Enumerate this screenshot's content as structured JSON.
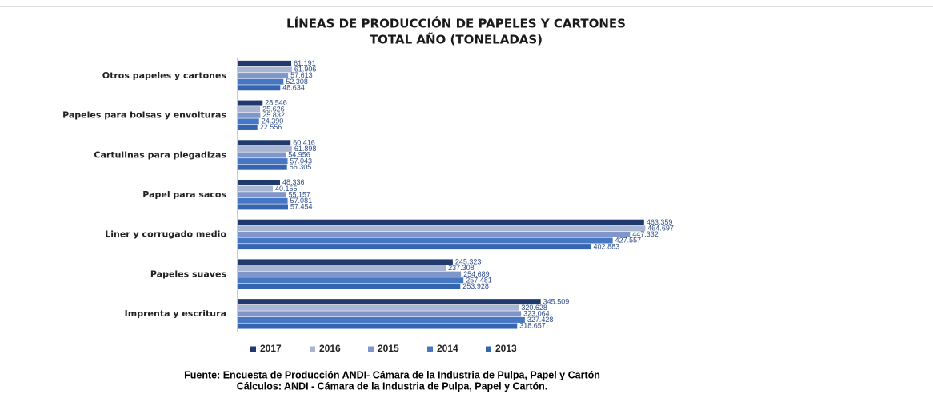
{
  "chart_data": {
    "type": "hbar",
    "title": "LÍNEAS DE PRODUCCIÓN DE PAPELES Y CARTONES",
    "subtitle": "TOTAL AÑO (TONELADAS)",
    "categories": [
      "Otros papeles y cartones",
      "Papeles para bolsas y envolturas",
      "Cartulinas para plegadizas",
      "Papel para sacos",
      "Liner y corrugado medio",
      "Papeles suaves",
      "Imprenta y escritura"
    ],
    "series": [
      {
        "name": "2017",
        "color": "#203a6e",
        "values": [
          61191,
          28546,
          60416,
          48336,
          463359,
          245323,
          345509
        ],
        "value_labels": [
          "61.191",
          "28.546",
          "60.416",
          "48.336",
          "463.359",
          "245.323",
          "345.509"
        ]
      },
      {
        "name": "2016",
        "color": "#a9b6d2",
        "values": [
          61906,
          25626,
          61898,
          40155,
          464697,
          237308,
          320628
        ],
        "value_labels": [
          "61.906",
          "25.626",
          "61.898",
          "40.155",
          "464.697",
          "237.308",
          "320.628"
        ]
      },
      {
        "name": "2015",
        "color": "#7e96c9",
        "values": [
          57613,
          25832,
          54956,
          55157,
          447332,
          254689,
          323064
        ],
        "value_labels": [
          "57.613",
          "25.832",
          "54.956",
          "55.157",
          "447.332",
          "254.689",
          "323.064"
        ]
      },
      {
        "name": "2014",
        "color": "#4677c2",
        "values": [
          52308,
          24390,
          57043,
          57081,
          427557,
          257481,
          327428
        ],
        "value_labels": [
          "52.308",
          "24.390",
          "57.043",
          "57.081",
          "427.557",
          "257.481",
          "327.428"
        ]
      },
      {
        "name": "2013",
        "color": "#3565b0",
        "values": [
          48634,
          22556,
          56305,
          57454,
          402883,
          253928,
          318657
        ],
        "value_labels": [
          "48.634",
          "22.556",
          "56.305",
          "57.454",
          "402.883",
          "253.928",
          "318.657"
        ]
      }
    ],
    "xlim": [
      0,
      500000
    ],
    "legend": "bottom",
    "source": [
      "Fuente: Encuesta de Producción  ANDI- Cámara de la Industria de Pulpa, Papel y Cartón",
      "Cálculos: ANDI - Cámara de la Industria de Pulpa, Papel y Cartón."
    ]
  }
}
